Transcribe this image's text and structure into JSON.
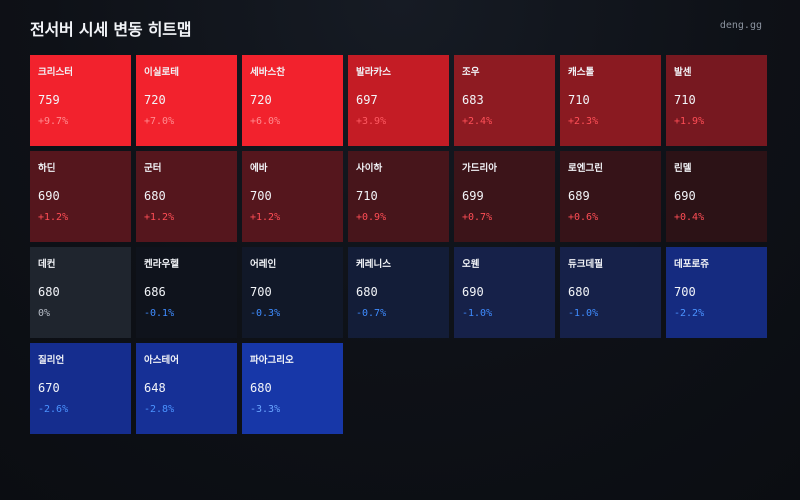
{
  "header": {
    "title": "전서버 시세 변동 히트맵",
    "brand": "deng.gg"
  },
  "colors": {
    "page_background": "#0e1117",
    "up_text": "#ff4d55",
    "up_text_strong": "#ff8c90",
    "flat_text": "#b8bec8",
    "down_text": "#3f8cff",
    "down_text_strong": "#6aa5ff"
  },
  "servers": [
    {
      "name": "크리스터",
      "price": "759",
      "change": "+9.7%",
      "bg": "#f2222d",
      "change_color": "#ff8c90"
    },
    {
      "name": "이실로테",
      "price": "720",
      "change": "+7.0%",
      "bg": "#f2222d",
      "change_color": "#ff8c90"
    },
    {
      "name": "세바스찬",
      "price": "720",
      "change": "+6.0%",
      "bg": "#f2222d",
      "change_color": "#ff8c90"
    },
    {
      "name": "발라카스",
      "price": "697",
      "change": "+3.9%",
      "bg": "#c41c25",
      "change_color": "#ff5a62"
    },
    {
      "name": "조우",
      "price": "683",
      "change": "+2.4%",
      "bg": "#8e1b22",
      "change_color": "#ff5058"
    },
    {
      "name": "캐스톨",
      "price": "710",
      "change": "+2.3%",
      "bg": "#8a1a21",
      "change_color": "#ff5058"
    },
    {
      "name": "발센",
      "price": "710",
      "change": "+1.9%",
      "bg": "#771820",
      "change_color": "#ff4d55"
    },
    {
      "name": "하딘",
      "price": "690",
      "change": "+1.2%",
      "bg": "#55161d",
      "change_color": "#ff4d55"
    },
    {
      "name": "군터",
      "price": "680",
      "change": "+1.2%",
      "bg": "#55161d",
      "change_color": "#ff4d55"
    },
    {
      "name": "에바",
      "price": "700",
      "change": "+1.2%",
      "bg": "#55161d",
      "change_color": "#ff4d55"
    },
    {
      "name": "사이하",
      "price": "710",
      "change": "+0.9%",
      "bg": "#47151b",
      "change_color": "#ff4d55"
    },
    {
      "name": "가드리아",
      "price": "699",
      "change": "+0.7%",
      "bg": "#3c1419",
      "change_color": "#ff4d55"
    },
    {
      "name": "로엔그린",
      "price": "689",
      "change": "+0.6%",
      "bg": "#361318",
      "change_color": "#ff4d55"
    },
    {
      "name": "린델",
      "price": "690",
      "change": "+0.4%",
      "bg": "#2c1216",
      "change_color": "#ff4d55"
    },
    {
      "name": "데컨",
      "price": "680",
      "change": "0%",
      "bg": "#1f252e",
      "change_color": "#b8bec8"
    },
    {
      "name": "켄라우헬",
      "price": "686",
      "change": "-0.1%",
      "bg": "#0f131c",
      "change_color": "#3f8cff"
    },
    {
      "name": "어레인",
      "price": "700",
      "change": "-0.3%",
      "bg": "#111828",
      "change_color": "#3f8cff"
    },
    {
      "name": "케레니스",
      "price": "680",
      "change": "-0.7%",
      "bg": "#131d38",
      "change_color": "#3f8cff"
    },
    {
      "name": "오웬",
      "price": "690",
      "change": "-1.0%",
      "bg": "#162149",
      "change_color": "#3f8cff"
    },
    {
      "name": "듀크데필",
      "price": "680",
      "change": "-1.0%",
      "bg": "#162149",
      "change_color": "#3f8cff"
    },
    {
      "name": "데포로쥬",
      "price": "700",
      "change": "-2.2%",
      "bg": "#152b80",
      "change_color": "#4b93ff"
    },
    {
      "name": "질리언",
      "price": "670",
      "change": "-2.6%",
      "bg": "#152d8e",
      "change_color": "#4b93ff"
    },
    {
      "name": "아스테어",
      "price": "648",
      "change": "-2.8%",
      "bg": "#163096",
      "change_color": "#4b93ff"
    },
    {
      "name": "파아그리오",
      "price": "680",
      "change": "-3.3%",
      "bg": "#1737a8",
      "change_color": "#6aa5ff"
    }
  ]
}
